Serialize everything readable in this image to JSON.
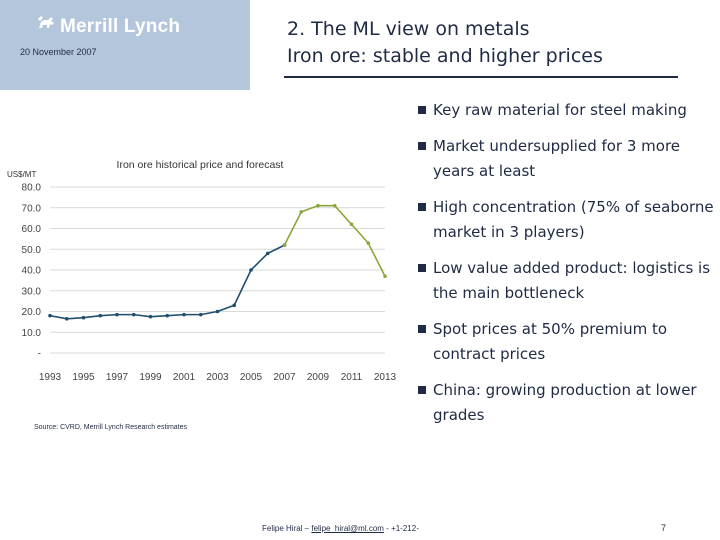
{
  "header": {
    "logo_text": "Merrill Lynch",
    "date": "20 November 2007",
    "title_line1": "2. The ML view on metals",
    "title_line2": "Iron ore: stable and higher prices"
  },
  "bullets": [
    "Key raw material for steel making",
    "Market undersupplied for 3 more years at least",
    "High concentration (75% of seaborne market in 3 players)",
    "Low value added product: logistics is the main bottleneck",
    "Spot prices at 50% premium to contract prices",
    "China: growing production at lower grades"
  ],
  "source": "Source: CVRD, Merrill Lynch Research estimates",
  "footer": {
    "prefix": "Felipe Hiral – ",
    "email": "felipe_hiral@ml.com",
    "suffix": " - +1-212-",
    "page": "7"
  },
  "colors": {
    "navy": "#1f2a44",
    "logo_bg": "#b4c6dc",
    "historical_line": "#1f4e6e",
    "forecast_line": "#8aa63c"
  },
  "chart_data": {
    "type": "line",
    "title": "Iron ore historical price and forecast",
    "ylabel": "US$/MT",
    "xlabel": "",
    "ylim": [
      0,
      80
    ],
    "yticks": [
      {
        "value": 0,
        "label": "-"
      },
      {
        "value": 10,
        "label": "10.0"
      },
      {
        "value": 20,
        "label": "20.0"
      },
      {
        "value": 30,
        "label": "30.0"
      },
      {
        "value": 40,
        "label": "40.0"
      },
      {
        "value": 50,
        "label": "50.0"
      },
      {
        "value": 60,
        "label": "60.0"
      },
      {
        "value": 70,
        "label": "70.0"
      },
      {
        "value": 80,
        "label": "80.0"
      }
    ],
    "xlim": [
      1993,
      2013
    ],
    "xticks": [
      "1993",
      "1995",
      "1997",
      "1999",
      "2001",
      "2003",
      "2005",
      "2007",
      "2009",
      "2011",
      "2013"
    ],
    "series": [
      {
        "x": [
          1993,
          1994,
          1995,
          1996,
          1997,
          1998,
          1999,
          2000,
          2001,
          2002,
          2003,
          2004,
          2005,
          2006,
          2007
        ],
        "values": [
          18,
          16.5,
          17,
          18,
          18.5,
          18.5,
          17.5,
          18,
          18.5,
          18.5,
          20,
          23,
          40,
          48,
          52
        ]
      },
      {
        "x": [
          2007,
          2008,
          2009,
          2010,
          2011,
          2012,
          2013
        ],
        "values": [
          52,
          68,
          71,
          71,
          62,
          53,
          37
        ]
      }
    ]
  }
}
